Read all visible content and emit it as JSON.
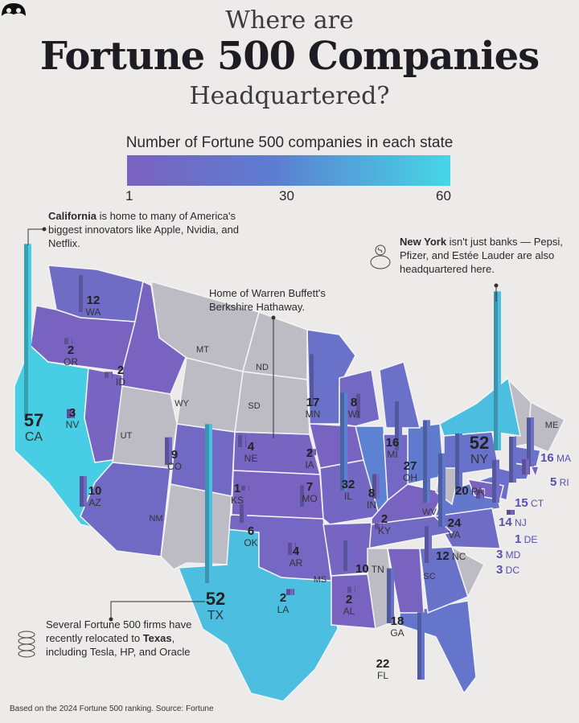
{
  "title": {
    "line1": "Where are",
    "line2": "Fortune 500 Companies",
    "line3": "Headquartered?"
  },
  "legend": {
    "title": "Number of Fortune 500 companies in each state",
    "min": "1",
    "mid": "30",
    "max": "60",
    "colors": [
      "#7a62c0",
      "#5d7dd0",
      "#45d7e6"
    ]
  },
  "annotations": {
    "california": {
      "bold": "California",
      "text": " is home to many of America's biggest innovators like Apple, Nvidia, and Netflix."
    },
    "new_york": {
      "bold": "New York",
      "text": " isn't just banks — Pepsi, Pfizer, and Estée Lauder are also headquartered here.",
      "icon": "piggy-bank-icon"
    },
    "nebraska": {
      "text": "Home of Warren Buffett's Berkshire Hathaway."
    },
    "texas": {
      "pre": "Several Fortune 500 firms have recently relocated to ",
      "bold": "Texas",
      "post": ", including Tesla, HP, and Oracle",
      "icon": "coin-stack-icon"
    }
  },
  "map": {
    "zero_color": "#bdbcc4",
    "states": [
      {
        "abbr": "CA",
        "value": 57
      },
      {
        "abbr": "TX",
        "value": 52
      },
      {
        "abbr": "NY",
        "value": 52
      },
      {
        "abbr": "IL",
        "value": 32
      },
      {
        "abbr": "OH",
        "value": 27
      },
      {
        "abbr": "VA",
        "value": 24
      },
      {
        "abbr": "FL",
        "value": 22
      },
      {
        "abbr": "PA",
        "value": 20
      },
      {
        "abbr": "GA",
        "value": 18
      },
      {
        "abbr": "MN",
        "value": 17
      },
      {
        "abbr": "MI",
        "value": 16
      },
      {
        "abbr": "MA",
        "value": 16
      },
      {
        "abbr": "CT",
        "value": 15
      },
      {
        "abbr": "NJ",
        "value": 14
      },
      {
        "abbr": "WA",
        "value": 12
      },
      {
        "abbr": "NC",
        "value": 12
      },
      {
        "abbr": "TN",
        "value": 10
      },
      {
        "abbr": "AZ",
        "value": 10
      },
      {
        "abbr": "CO",
        "value": 9
      },
      {
        "abbr": "WI",
        "value": 8
      },
      {
        "abbr": "IN",
        "value": 8
      },
      {
        "abbr": "MO",
        "value": 7
      },
      {
        "abbr": "OK",
        "value": 6
      },
      {
        "abbr": "RI",
        "value": 5
      },
      {
        "abbr": "NE",
        "value": 4
      },
      {
        "abbr": "AR",
        "value": 4
      },
      {
        "abbr": "NV",
        "value": 3
      },
      {
        "abbr": "MD",
        "value": 3
      },
      {
        "abbr": "DC",
        "value": 3
      },
      {
        "abbr": "OR",
        "value": 2
      },
      {
        "abbr": "ID",
        "value": 2
      },
      {
        "abbr": "IA",
        "value": 2
      },
      {
        "abbr": "KY",
        "value": 2
      },
      {
        "abbr": "LA",
        "value": 2
      },
      {
        "abbr": "AL",
        "value": 2
      },
      {
        "abbr": "KS",
        "value": 1
      },
      {
        "abbr": "DE",
        "value": 1
      },
      {
        "abbr": "MT",
        "value": null
      },
      {
        "abbr": "ND",
        "value": null
      },
      {
        "abbr": "SD",
        "value": null
      },
      {
        "abbr": "WY",
        "value": null
      },
      {
        "abbr": "UT",
        "value": null
      },
      {
        "abbr": "NM",
        "value": null
      },
      {
        "abbr": "MS",
        "value": null
      },
      {
        "abbr": "SC",
        "value": null
      },
      {
        "abbr": "WV",
        "value": null
      },
      {
        "abbr": "ME",
        "value": null
      }
    ]
  },
  "footer": "Based on the 2024 Fortune 500 ranking. Source: Fortune",
  "logo": "brand-logo"
}
